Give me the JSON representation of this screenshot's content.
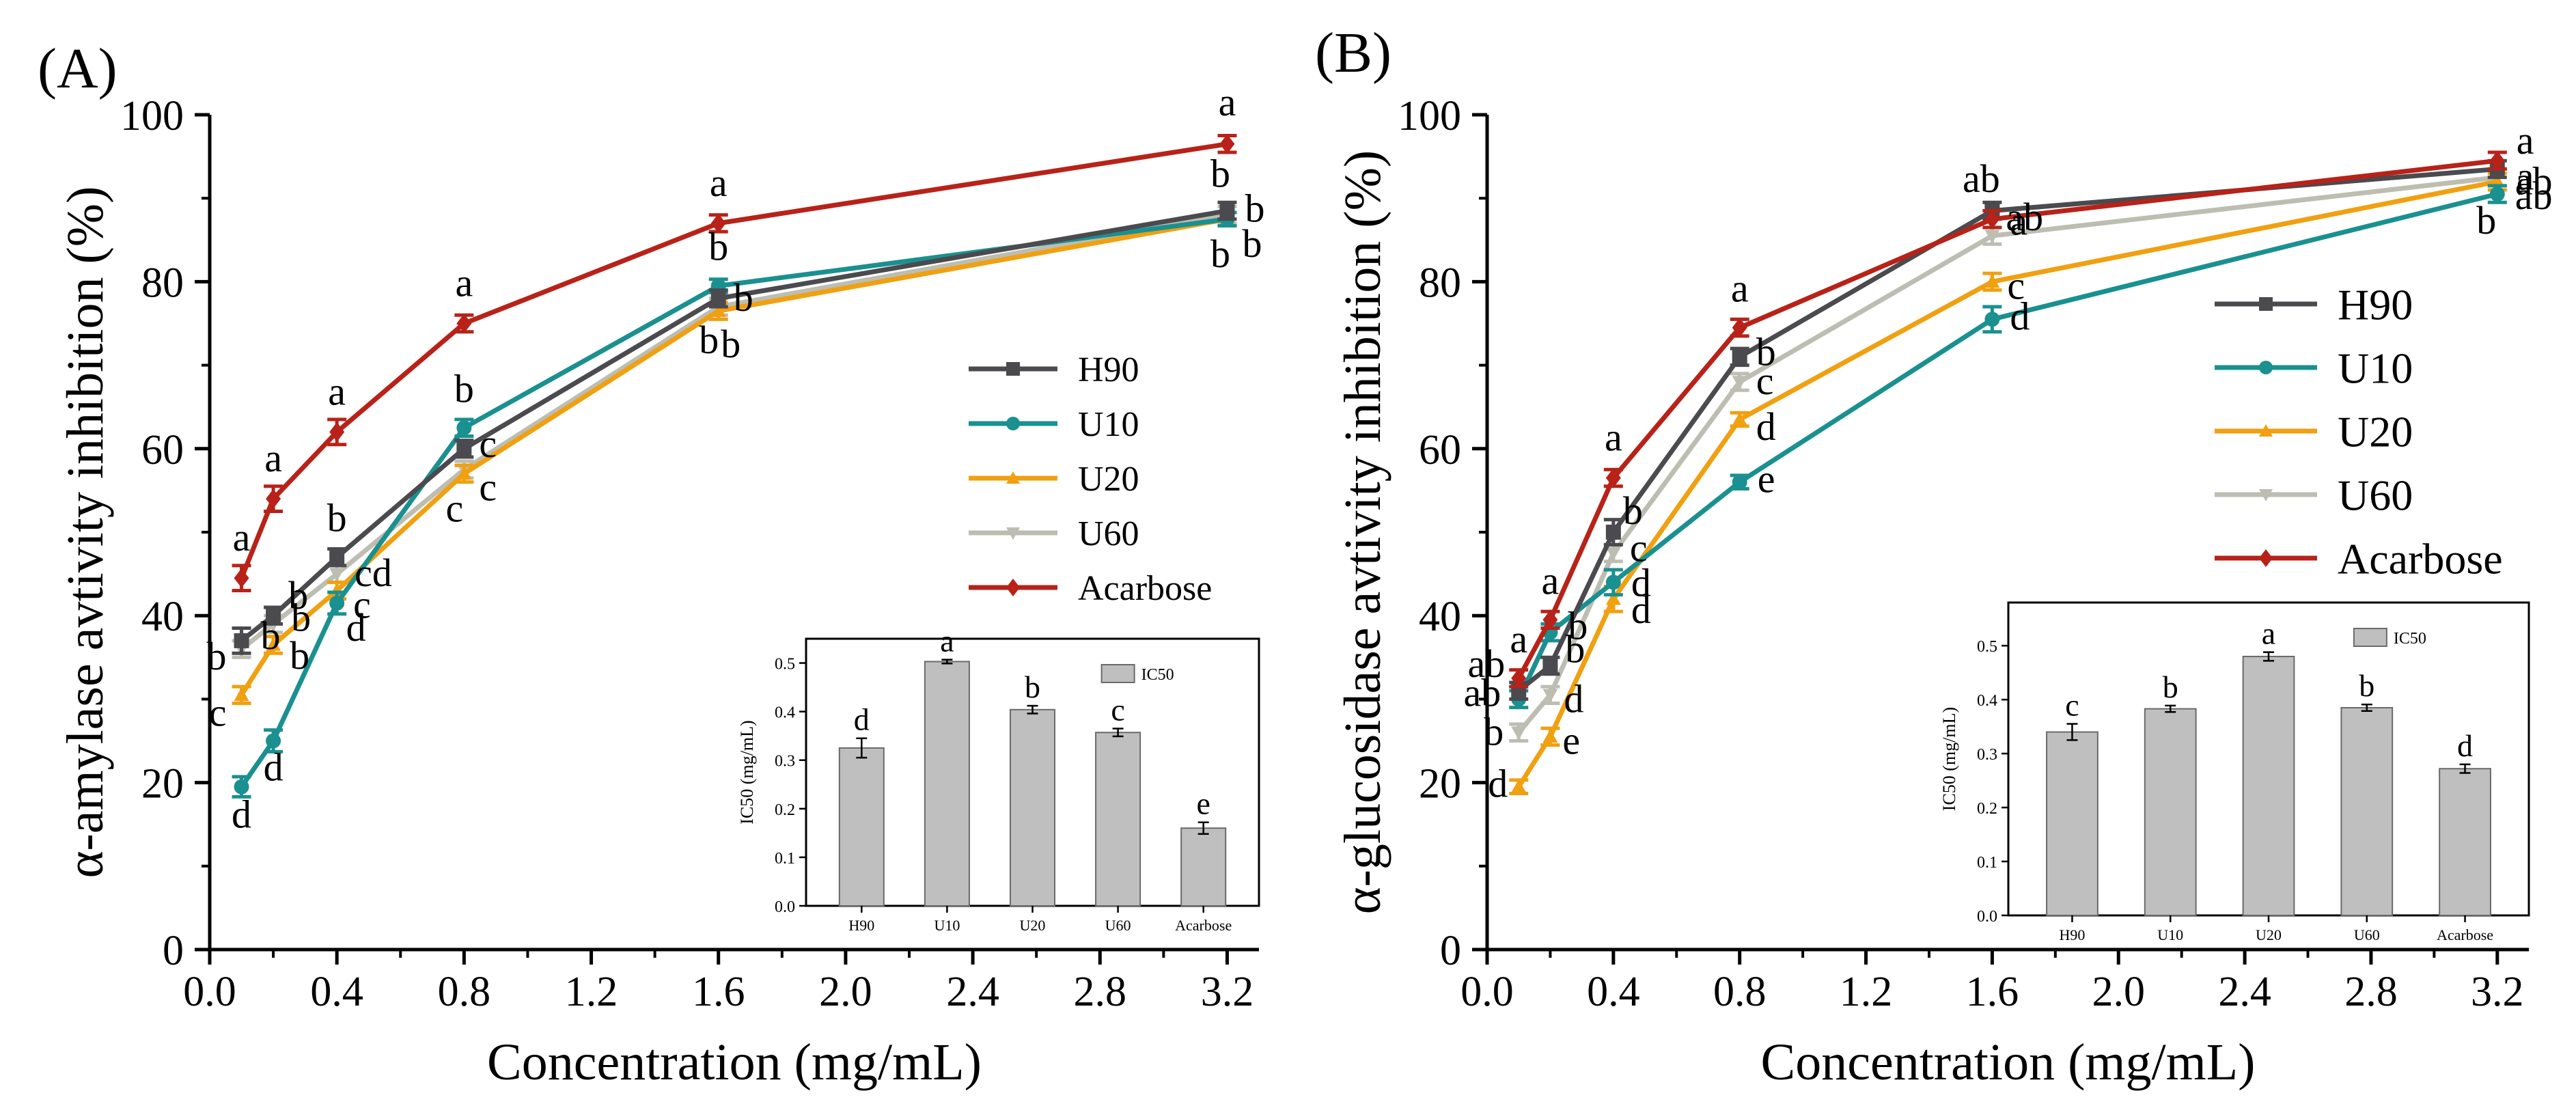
{
  "figure": {
    "panels": [
      "(A)",
      "(B)"
    ]
  },
  "colors": {
    "H90": "#4a4a4f",
    "U10": "#1a9090",
    "U20": "#f0a010",
    "U60": "#bdbdb2",
    "Acarbose": "#b82218",
    "bar": "#bfbfbf"
  },
  "chart_data": [
    {
      "type": "line",
      "panel": "(A)",
      "title": "",
      "xlabel": "Concentration (mg/mL)",
      "ylabel": "α-amylase avtivity inhibition (%)",
      "xlim": [
        0,
        3.3
      ],
      "ylim": [
        0,
        100
      ],
      "xticks": [
        "0.0",
        "0.4",
        "0.8",
        "1.2",
        "1.6",
        "2.0",
        "2.4",
        "2.8",
        "3.2"
      ],
      "yticks": [
        "0",
        "20",
        "40",
        "60",
        "80",
        "100"
      ],
      "legend_position": "center-right",
      "x": [
        0.1,
        0.2,
        0.4,
        0.8,
        1.6,
        3.2
      ],
      "series": [
        {
          "name": "H90",
          "marker": "square",
          "values": [
            37,
            40,
            47,
            60,
            78,
            88.5
          ],
          "errors": [
            1.5,
            1,
            1,
            1,
            1,
            1
          ],
          "letters": [
            "b",
            "b",
            "b",
            "c",
            "b",
            "b"
          ]
        },
        {
          "name": "U10",
          "marker": "circle",
          "values": [
            19.5,
            25,
            41.5,
            62.5,
            79.5,
            87.5
          ],
          "errors": [
            1.2,
            1.3,
            1.3,
            1,
            0.8,
            0.8
          ],
          "letters": [
            "d",
            "d",
            "d",
            "b",
            "b",
            "b"
          ]
        },
        {
          "name": "U20",
          "marker": "triangle-up",
          "values": [
            30.5,
            36.5,
            43,
            57,
            76.5,
            87.5
          ],
          "errors": [
            1,
            1,
            1,
            1,
            1,
            0.8
          ],
          "letters": [
            "c",
            "b",
            "c",
            "c",
            "b",
            "b"
          ]
        },
        {
          "name": "U60",
          "marker": "triangle-down",
          "values": [
            36,
            39,
            45,
            57.5,
            77,
            88
          ],
          "errors": [
            1,
            1,
            1,
            1,
            1,
            1
          ],
          "letters": [
            "b",
            "b",
            "cd",
            "c",
            "b",
            "b"
          ]
        },
        {
          "name": "Acarbose",
          "marker": "diamond",
          "values": [
            44.5,
            54,
            62,
            75,
            87,
            96.5
          ],
          "errors": [
            1.5,
            1.5,
            1.5,
            1,
            1,
            1
          ],
          "letters": [
            "a",
            "a",
            "a",
            "a",
            "a",
            "a"
          ]
        }
      ],
      "inset": {
        "type": "bar",
        "legend": "IC50",
        "ylabel": "IC50 (mg/mL)",
        "categories": [
          "H90",
          "U10",
          "U20",
          "U60",
          "Acarbose"
        ],
        "values": [
          0.325,
          0.503,
          0.404,
          0.357,
          0.16
        ],
        "errors": [
          0.02,
          0.004,
          0.008,
          0.008,
          0.012
        ],
        "letters": [
          "d",
          "a",
          "b",
          "c",
          "e"
        ],
        "ylim": [
          0,
          0.55
        ],
        "yticks": [
          "0.0",
          "0.1",
          "0.2",
          "0.3",
          "0.4",
          "0.5"
        ]
      }
    },
    {
      "type": "line",
      "panel": "(B)",
      "title": "",
      "xlabel": "Concentration (mg/mL)",
      "ylabel": "α-glucosidase avtivity inhibition (%)",
      "xlim": [
        0,
        3.3
      ],
      "ylim": [
        0,
        100
      ],
      "xticks": [
        "0.0",
        "0.4",
        "0.8",
        "1.2",
        "1.6",
        "2.0",
        "2.4",
        "2.8",
        "3.2"
      ],
      "yticks": [
        "0",
        "20",
        "40",
        "60",
        "80",
        "100"
      ],
      "legend_position": "center-right",
      "x": [
        0.1,
        0.2,
        0.4,
        0.8,
        1.6,
        3.2
      ],
      "series": [
        {
          "name": "H90",
          "marker": "square",
          "values": [
            31,
            34,
            50,
            71,
            88.5,
            93.5
          ],
          "errors": [
            1,
            1,
            1.5,
            1,
            1,
            1
          ],
          "letters": [
            "ab",
            "b",
            "b",
            "b",
            "a",
            "a"
          ]
        },
        {
          "name": "U10",
          "marker": "circle",
          "values": [
            30,
            38,
            44,
            56,
            75.5,
            90.5
          ],
          "errors": [
            1,
            1,
            1.5,
            0.8,
            1.5,
            1
          ],
          "letters": [
            "ab",
            "b",
            "d",
            "e",
            "d",
            "b"
          ]
        },
        {
          "name": "U20",
          "marker": "triangle-up",
          "values": [
            19.5,
            25.5,
            42,
            63.5,
            80,
            92
          ],
          "errors": [
            0.8,
            1,
            1.5,
            0.8,
            1,
            1
          ],
          "letters": [
            "d",
            "e",
            "d",
            "d",
            "c",
            "ab"
          ]
        },
        {
          "name": "U60",
          "marker": "triangle-down",
          "values": [
            26,
            30.5,
            47.5,
            68,
            85.5,
            92.5
          ],
          "errors": [
            1,
            1,
            1,
            1,
            1,
            1
          ],
          "letters": [
            "b",
            "d",
            "c",
            "c",
            "ab",
            "ab"
          ]
        },
        {
          "name": "Acarbose",
          "marker": "diamond",
          "values": [
            32.5,
            39.5,
            56.5,
            74.5,
            87.5,
            94.5
          ],
          "errors": [
            1,
            1,
            1,
            1,
            1,
            1
          ],
          "letters": [
            "a",
            "a",
            "a",
            "a",
            "ab",
            "a"
          ]
        }
      ],
      "inset": {
        "type": "bar",
        "legend": "IC50",
        "ylabel": "IC50 (mg/mL)",
        "categories": [
          "H90",
          "U10",
          "U20",
          "U60",
          "Acarbose"
        ],
        "values": [
          0.34,
          0.383,
          0.48,
          0.385,
          0.272
        ],
        "errors": [
          0.015,
          0.006,
          0.008,
          0.006,
          0.008
        ],
        "letters": [
          "c",
          "b",
          "a",
          "b",
          "d"
        ],
        "ylim": [
          0,
          0.58
        ],
        "yticks": [
          "0.0",
          "0.1",
          "0.2",
          "0.3",
          "0.4",
          "0.5"
        ]
      }
    }
  ]
}
